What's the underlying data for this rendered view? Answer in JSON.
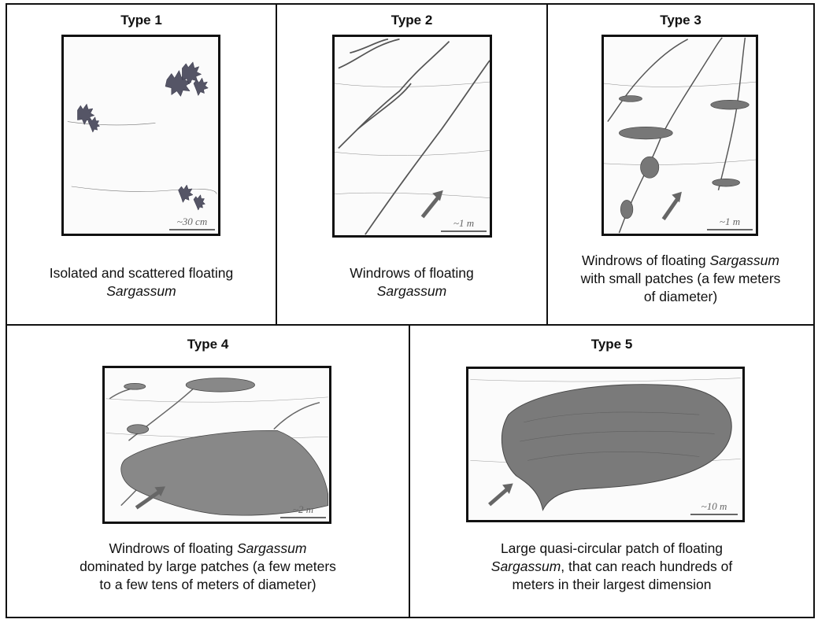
{
  "panels": [
    {
      "title": "Type 1",
      "scale": "~30 cm",
      "caption": {
        "line1_pre": "Isolated and scattered floating",
        "line1_em": "",
        "line2_em": "Sargassum",
        "line2_post": "",
        "line3": ""
      }
    },
    {
      "title": "Type 2",
      "scale": "~1 m",
      "caption": {
        "line1_pre": "Windrows of floating",
        "line1_em": "",
        "line2_em": "Sargassum",
        "line2_post": "",
        "line3": ""
      }
    },
    {
      "title": "Type 3",
      "scale": "~1 m",
      "caption": {
        "line1_pre": "Windrows of floating ",
        "line1_em": "Sargassum",
        "line2_em": "",
        "line2_post": "with small patches (a few meters",
        "line3": "of diameter)"
      }
    },
    {
      "title": "Type 4",
      "scale": "~2 m",
      "caption": {
        "line1_pre": "Windrows of floating ",
        "line1_em": "Sargassum",
        "line2_em": "",
        "line2_post": "dominated by large patches (a few meters",
        "line3": "to a few tens of meters of diameter)"
      }
    },
    {
      "title": "Type 5",
      "scale": "~10 m",
      "caption": {
        "line1_pre": "Large quasi-circular patch of floating",
        "line1_em": "",
        "line2_em": "Sargassum",
        "line2_post": ", that can reach hundreds of",
        "line3": "meters in their largest dimension"
      }
    }
  ],
  "colors": {
    "border": "#111111",
    "sketch_stroke": "#555555",
    "scale": "#666666"
  }
}
